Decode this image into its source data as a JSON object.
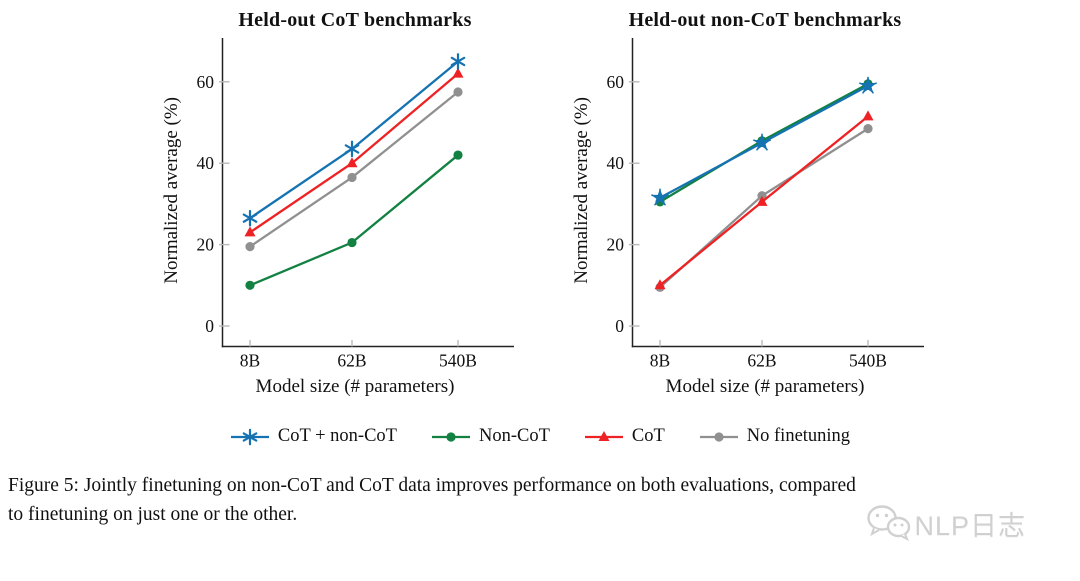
{
  "figure": {
    "caption_line1": "Figure 5: Jointly finetuning on non-CoT and CoT data improves performance on both evaluations, compared",
    "caption_line2": "to finetuning on just one or the other.",
    "watermark": {
      "icon": "wechat-icon",
      "text": "NLP日志",
      "color": "#d0d0d0"
    }
  },
  "colors": {
    "cot_plus_noncot": "#1573b2",
    "noncot": "#128142",
    "cot": "#ee2224",
    "no_finetuning": "#909090",
    "axis": "#222222",
    "tick_mark": "#b9b9b9"
  },
  "chart_data": [
    {
      "type": "line",
      "title": "Held-out CoT benchmarks",
      "xlabel": "Model size (# parameters)",
      "ylabel": "Normalized average (%)",
      "categories": [
        "8B",
        "62B",
        "540B"
      ],
      "yticks": [
        0,
        20,
        40,
        60
      ],
      "ylim": [
        0,
        70
      ],
      "grid": false,
      "legend_position": "below",
      "series": [
        {
          "name": "CoT + non-CoT",
          "color": "#1573b2",
          "marker": "asterisk-star",
          "values": [
            26.5,
            43.5,
            65
          ]
        },
        {
          "name": "Non-CoT",
          "color": "#128142",
          "marker": "circle",
          "values": [
            10,
            20.5,
            42
          ]
        },
        {
          "name": "CoT",
          "color": "#ee2224",
          "marker": "triangle",
          "values": [
            23,
            40,
            62
          ]
        },
        {
          "name": "No finetuning",
          "color": "#909090",
          "marker": "circle",
          "values": [
            19.5,
            36.5,
            57.5
          ]
        }
      ]
    },
    {
      "type": "line",
      "title": "Held-out non-CoT benchmarks",
      "xlabel": "Model size (# parameters)",
      "ylabel": "Normalized average (%)",
      "categories": [
        "8B",
        "62B",
        "540B"
      ],
      "yticks": [
        0,
        20,
        40,
        60
      ],
      "ylim": [
        0,
        70
      ],
      "grid": false,
      "legend_position": "below",
      "series": [
        {
          "name": "CoT + non-CoT",
          "color": "#1573b2",
          "marker": "filled-star",
          "values": [
            31.5,
            45,
            59
          ]
        },
        {
          "name": "Non-CoT",
          "color": "#128142",
          "marker": "circle",
          "values": [
            30.5,
            45.5,
            59.5
          ]
        },
        {
          "name": "CoT",
          "color": "#ee2224",
          "marker": "triangle",
          "values": [
            10,
            30.5,
            51.5
          ]
        },
        {
          "name": "No finetuning",
          "color": "#909090",
          "marker": "circle",
          "values": [
            9.5,
            32,
            48.5
          ]
        }
      ]
    }
  ],
  "legend": {
    "items": [
      {
        "label": "CoT + non-CoT",
        "color": "#1573b2",
        "marker": "asterisk-star"
      },
      {
        "label": "Non-CoT",
        "color": "#128142",
        "marker": "circle"
      },
      {
        "label": "CoT",
        "color": "#ee2224",
        "marker": "triangle"
      },
      {
        "label": "No finetuning",
        "color": "#909090",
        "marker": "circle"
      }
    ]
  }
}
